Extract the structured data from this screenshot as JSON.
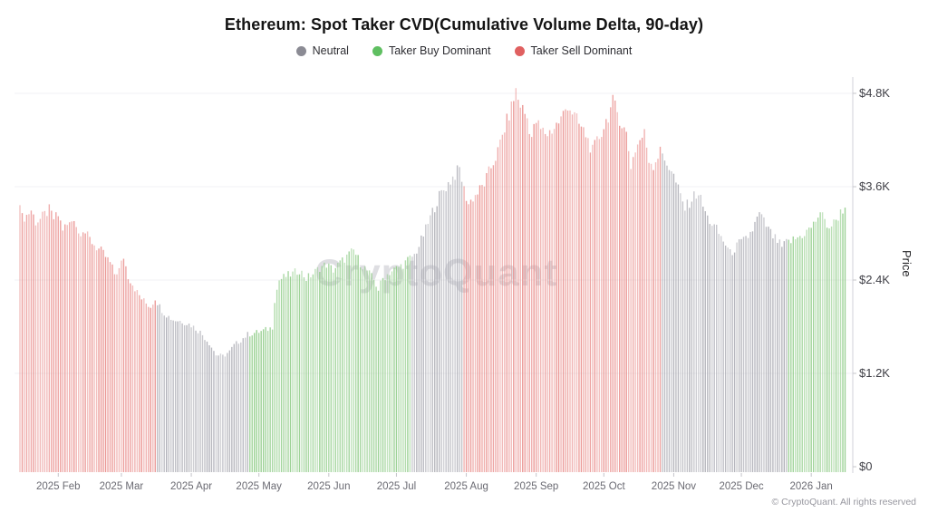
{
  "title": "Ethereum: Spot Taker CVD(Cumulative Volume Delta, 90-day)",
  "legend": [
    {
      "key": "neutral",
      "label": "Neutral",
      "color": "#8b8b94"
    },
    {
      "key": "buy",
      "label": "Taker Buy Dominant",
      "color": "#5fbf61"
    },
    {
      "key": "sell",
      "label": "Taker Sell Dominant",
      "color": "#e06060"
    }
  ],
  "watermark": "CryptoQuant",
  "footer": "© CryptoQuant. All rights reserved",
  "chart_data": {
    "type": "bar",
    "title": "Ethereum: Spot Taker CVD(Cumulative Volume Delta, 90-day)",
    "xlabel": "",
    "ylabel": "Price",
    "ylim": [
      0,
      4800
    ],
    "grid": "horizontal",
    "legend_position": "top-center",
    "x_start_date_estimate": "2025-01-15",
    "days_total": 367,
    "y_ticks": [
      {
        "label": "$4.8K",
        "value": 4800
      },
      {
        "label": "$3.6K",
        "value": 3600
      },
      {
        "label": "$2.4K",
        "value": 2400
      },
      {
        "label": "$1.2K",
        "value": 1200
      },
      {
        "label": "$0",
        "value": 0
      }
    ],
    "x_ticks": [
      {
        "label": "2025 Feb",
        "day": 17
      },
      {
        "label": "2025 Mar",
        "day": 45
      },
      {
        "label": "2025 Apr",
        "day": 76
      },
      {
        "label": "2025 May",
        "day": 106
      },
      {
        "label": "2025 Jun",
        "day": 137
      },
      {
        "label": "2025 Jul",
        "day": 167
      },
      {
        "label": "2025 Aug",
        "day": 198
      },
      {
        "label": "2025 Sep",
        "day": 229
      },
      {
        "label": "2025 Oct",
        "day": 259
      },
      {
        "label": "2025 Nov",
        "day": 290
      },
      {
        "label": "2025 Dec",
        "day": 320
      },
      {
        "label": "2026 Jan",
        "day": 351
      }
    ],
    "bar_colors": {
      "neutral": "#a9a9b1",
      "buy": "#8ecb86",
      "sell": "#e88a88"
    },
    "segments": [
      {
        "from": 0,
        "to": 60,
        "color": "sell"
      },
      {
        "from": 61,
        "to": 101,
        "color": "neutral"
      },
      {
        "from": 102,
        "to": 173,
        "color": "buy"
      },
      {
        "from": 174,
        "to": 196,
        "color": "neutral"
      },
      {
        "from": 197,
        "to": 284,
        "color": "sell"
      },
      {
        "from": 285,
        "to": 340,
        "color": "neutral"
      },
      {
        "from": 341,
        "to": 366,
        "color": "buy"
      }
    ],
    "price_anchors_usd": [
      [
        0,
        3440
      ],
      [
        1,
        3200
      ],
      [
        3,
        3230
      ],
      [
        5,
        3300
      ],
      [
        7,
        3150
      ],
      [
        9,
        3180
      ],
      [
        11,
        3240
      ],
      [
        13,
        3300
      ],
      [
        15,
        3190
      ],
      [
        17,
        3230
      ],
      [
        19,
        3060
      ],
      [
        22,
        3120
      ],
      [
        24,
        3210
      ],
      [
        26,
        3000
      ],
      [
        28,
        3060
      ],
      [
        30,
        2960
      ],
      [
        32,
        2890
      ],
      [
        34,
        2820
      ],
      [
        36,
        2770
      ],
      [
        38,
        2700
      ],
      [
        40,
        2620
      ],
      [
        42,
        2480
      ],
      [
        44,
        2530
      ],
      [
        46,
        2700
      ],
      [
        48,
        2450
      ],
      [
        50,
        2350
      ],
      [
        52,
        2240
      ],
      [
        54,
        2160
      ],
      [
        56,
        2100
      ],
      [
        58,
        2060
      ],
      [
        60,
        2170
      ],
      [
        62,
        2060
      ],
      [
        64,
        1980
      ],
      [
        66,
        1930
      ],
      [
        68,
        1890
      ],
      [
        72,
        1870
      ],
      [
        76,
        1820
      ],
      [
        80,
        1730
      ],
      [
        84,
        1590
      ],
      [
        87,
        1440
      ],
      [
        90,
        1420
      ],
      [
        93,
        1480
      ],
      [
        95,
        1560
      ],
      [
        98,
        1630
      ],
      [
        101,
        1700
      ],
      [
        104,
        1720
      ],
      [
        107,
        1740
      ],
      [
        111,
        1780
      ],
      [
        112,
        1800
      ],
      [
        113,
        2150
      ],
      [
        115,
        2400
      ],
      [
        118,
        2450
      ],
      [
        121,
        2480
      ],
      [
        124,
        2530
      ],
      [
        127,
        2420
      ],
      [
        130,
        2480
      ],
      [
        133,
        2560
      ],
      [
        136,
        2600
      ],
      [
        139,
        2530
      ],
      [
        142,
        2620
      ],
      [
        145,
        2700
      ],
      [
        148,
        2780
      ],
      [
        151,
        2620
      ],
      [
        154,
        2520
      ],
      [
        157,
        2400
      ],
      [
        159,
        2280
      ],
      [
        161,
        2420
      ],
      [
        164,
        2500
      ],
      [
        167,
        2550
      ],
      [
        170,
        2600
      ],
      [
        173,
        2680
      ],
      [
        175,
        2720
      ],
      [
        177,
        2840
      ],
      [
        180,
        3050
      ],
      [
        183,
        3280
      ],
      [
        186,
        3480
      ],
      [
        189,
        3600
      ],
      [
        192,
        3720
      ],
      [
        195,
        3830
      ],
      [
        197,
        3560
      ],
      [
        199,
        3380
      ],
      [
        201,
        3460
      ],
      [
        203,
        3520
      ],
      [
        206,
        3640
      ],
      [
        209,
        3850
      ],
      [
        212,
        4050
      ],
      [
        215,
        4350
      ],
      [
        218,
        4620
      ],
      [
        220,
        4840
      ],
      [
        221,
        4720
      ],
      [
        223,
        4600
      ],
      [
        225,
        4480
      ],
      [
        227,
        4240
      ],
      [
        229,
        4440
      ],
      [
        231,
        4330
      ],
      [
        234,
        4280
      ],
      [
        237,
        4360
      ],
      [
        240,
        4470
      ],
      [
        243,
        4660
      ],
      [
        245,
        4560
      ],
      [
        248,
        4400
      ],
      [
        251,
        4270
      ],
      [
        254,
        4050
      ],
      [
        256,
        4180
      ],
      [
        258,
        4300
      ],
      [
        261,
        4520
      ],
      [
        263,
        4680
      ],
      [
        265,
        4560
      ],
      [
        267,
        4400
      ],
      [
        269,
        4280
      ],
      [
        271,
        3870
      ],
      [
        273,
        4080
      ],
      [
        275,
        4200
      ],
      [
        277,
        4280
      ],
      [
        279,
        3950
      ],
      [
        281,
        3880
      ],
      [
        283,
        4000
      ],
      [
        284,
        4140
      ],
      [
        285,
        3960
      ],
      [
        287,
        3900
      ],
      [
        289,
        3820
      ],
      [
        291,
        3650
      ],
      [
        293,
        3480
      ],
      [
        295,
        3320
      ],
      [
        297,
        3400
      ],
      [
        299,
        3480
      ],
      [
        301,
        3520
      ],
      [
        303,
        3350
      ],
      [
        305,
        3200
      ],
      [
        307,
        3120
      ],
      [
        309,
        3050
      ],
      [
        311,
        2950
      ],
      [
        313,
        2860
      ],
      [
        315,
        2740
      ],
      [
        317,
        2800
      ],
      [
        319,
        2870
      ],
      [
        321,
        2900
      ],
      [
        323,
        2960
      ],
      [
        325,
        3050
      ],
      [
        328,
        3250
      ],
      [
        330,
        3150
      ],
      [
        332,
        3050
      ],
      [
        334,
        2960
      ],
      [
        336,
        2900
      ],
      [
        338,
        2820
      ],
      [
        340,
        2880
      ],
      [
        342,
        2900
      ],
      [
        344,
        2930
      ],
      [
        346,
        2960
      ],
      [
        348,
        3000
      ],
      [
        350,
        3050
      ],
      [
        352,
        3110
      ],
      [
        355,
        3280
      ],
      [
        357,
        3150
      ],
      [
        359,
        3080
      ],
      [
        361,
        3130
      ],
      [
        363,
        3220
      ],
      [
        365,
        3310
      ],
      [
        366,
        3330
      ]
    ]
  }
}
